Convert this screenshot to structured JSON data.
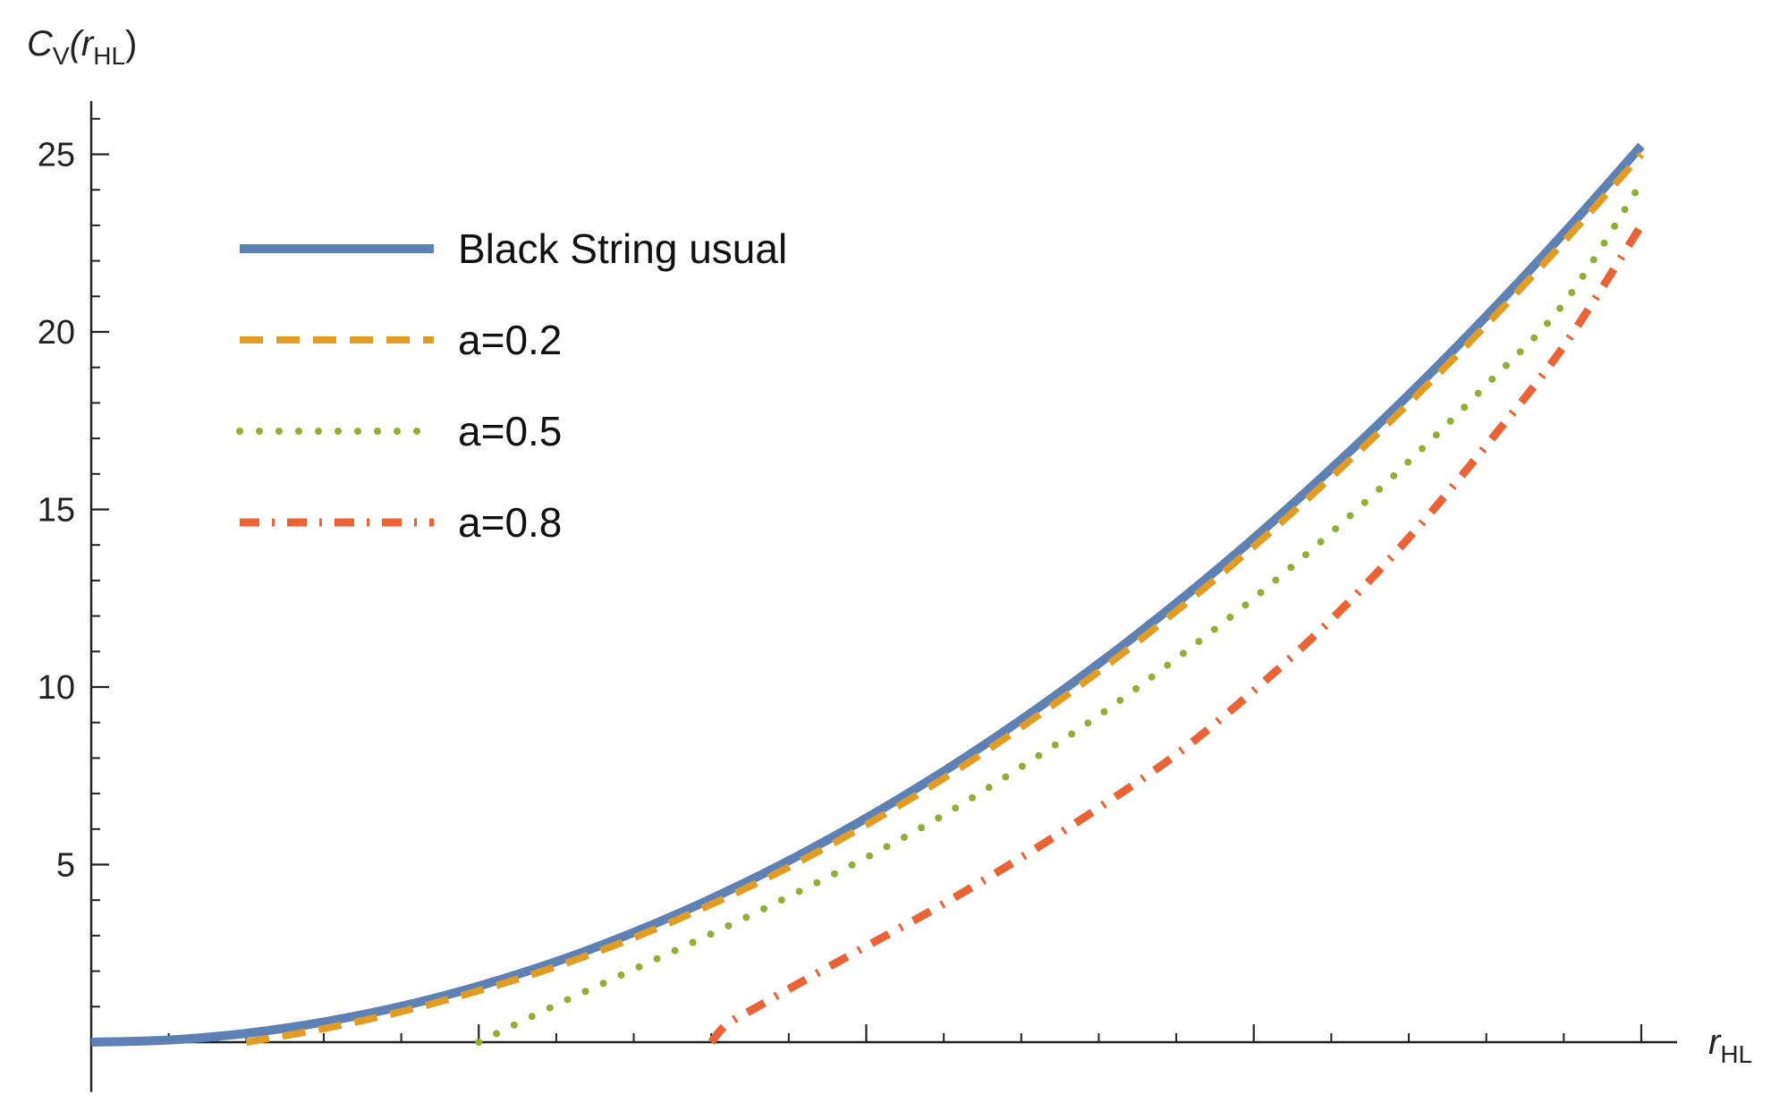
{
  "chart_data": {
    "type": "line",
    "title": "",
    "ylabel": {
      "main": "C",
      "sub": "V",
      "open": "(r",
      "arg_sub": "HL",
      "close": ")"
    },
    "xlabel": {
      "main": "r",
      "sub": "HL"
    },
    "xlim": [
      0,
      1
    ],
    "ylim": [
      -1.4,
      26.5
    ],
    "yticks": [
      {
        "value": 5,
        "label": "5"
      },
      {
        "value": 10,
        "label": "10"
      },
      {
        "value": 15,
        "label": "15"
      },
      {
        "value": 20,
        "label": "20"
      },
      {
        "value": 25,
        "label": "25"
      }
    ],
    "x_major_ticks": [
      0.25,
      0.5,
      0.75,
      1.0
    ],
    "x_minor_ticks": [
      0.05,
      0.1,
      0.15,
      0.2,
      0.3,
      0.35,
      0.4,
      0.45,
      0.55,
      0.6,
      0.65,
      0.7,
      0.8,
      0.85,
      0.9,
      0.95
    ],
    "y_minor_step": 1,
    "legend_position": "top-left",
    "series": [
      {
        "name": "Black String usual",
        "style": "solid",
        "color": "#5E81B5",
        "x": [
          0.0,
          0.05,
          0.1,
          0.15,
          0.2,
          0.25,
          0.3,
          0.35,
          0.4,
          0.45,
          0.5,
          0.55,
          0.6,
          0.65,
          0.7,
          0.75,
          0.8,
          0.85,
          0.9,
          0.95,
          1.0
        ],
        "y": [
          0.0,
          0.06,
          0.25,
          0.57,
          1.01,
          1.58,
          2.27,
          3.09,
          4.04,
          5.11,
          6.31,
          7.63,
          9.08,
          10.66,
          12.36,
          14.19,
          16.15,
          18.23,
          20.44,
          22.78,
          25.24
        ]
      },
      {
        "name": "a=0.2",
        "style": "dashed",
        "color": "#E19C24",
        "x": [
          0.1,
          0.15,
          0.2,
          0.25,
          0.3,
          0.35,
          0.4,
          0.45,
          0.5,
          0.55,
          0.6,
          0.65,
          0.7,
          0.75,
          0.8,
          0.85,
          0.9,
          0.95,
          1.0
        ],
        "y": [
          0.0,
          0.38,
          0.86,
          1.45,
          2.13,
          2.94,
          3.88,
          4.93,
          6.12,
          7.43,
          8.87,
          10.44,
          12.14,
          13.96,
          15.91,
          17.99,
          20.2,
          22.54,
          25.0
        ]
      },
      {
        "name": "a=0.5",
        "style": "dotted",
        "color": "#8FB032",
        "x": [
          0.25,
          0.3,
          0.35,
          0.4,
          0.45,
          0.5,
          0.55,
          0.6,
          0.65,
          0.7,
          0.75,
          0.8,
          0.85,
          0.9,
          0.95,
          1.0
        ],
        "y": [
          0.0,
          1.05,
          2.05,
          3.05,
          4.1,
          5.2,
          6.4,
          7.75,
          9.2,
          10.8,
          12.5,
          14.35,
          16.35,
          18.5,
          20.8,
          24.2
        ]
      },
      {
        "name": "a=0.8",
        "style": "dashdot",
        "color": "#EB6235",
        "x": [
          0.4,
          0.41,
          0.43,
          0.45,
          0.5,
          0.55,
          0.6,
          0.65,
          0.7,
          0.75,
          0.8,
          0.85,
          0.9,
          0.95,
          1.0
        ],
        "y": [
          0.0,
          0.5,
          1.0,
          1.5,
          2.7,
          3.9,
          5.2,
          6.6,
          8.1,
          9.9,
          11.9,
          14.2,
          16.8,
          19.6,
          23.0
        ]
      }
    ]
  }
}
